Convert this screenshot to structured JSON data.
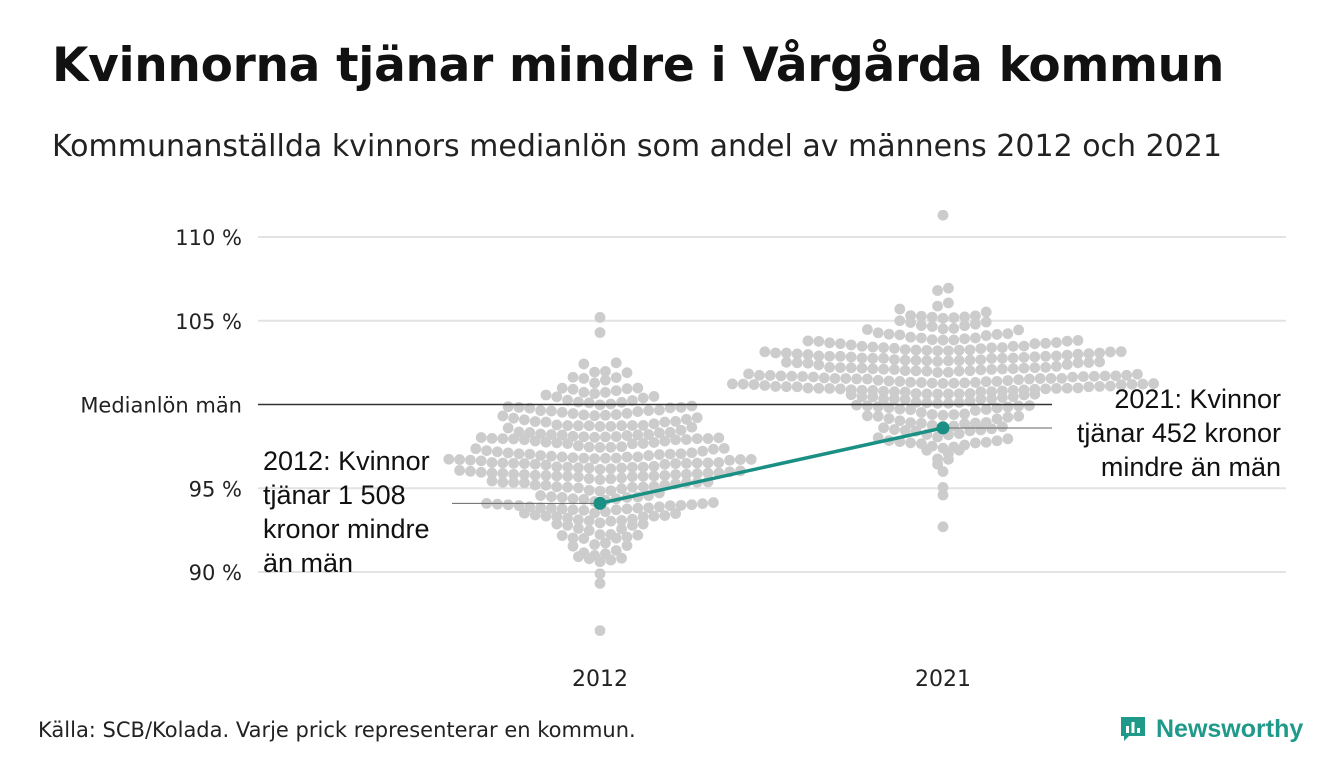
{
  "header": {
    "title": "Kvinnorna tjänar mindre i Vårgårda kommun",
    "subtitle": "Kommunanställda kvinnors medianlön som andel av männens 2012 och 2021"
  },
  "footer": {
    "source": "Källa: SCB/Kolada. Varje prick representerar en kommun.",
    "brand": "Newsworthy"
  },
  "colors": {
    "dots": "#cccccc",
    "highlight": "#1a9084",
    "gridline": "#e3e3e3",
    "reference_line": "#333333",
    "brand": "#1f9a8a"
  },
  "chart_data": {
    "type": "scatter",
    "subtype": "beeswarm",
    "categories": [
      "2012",
      "2021"
    ],
    "y_ticks": [
      {
        "value": 90,
        "label": "90 %"
      },
      {
        "value": 95,
        "label": "95 %"
      },
      {
        "value": 100,
        "label": "Medianlön män"
      },
      {
        "value": 105,
        "label": "105 %"
      },
      {
        "value": 110,
        "label": "110 %"
      }
    ],
    "ylim": [
      86.5,
      111.5
    ],
    "reference_line": {
      "value": 100
    },
    "distributions": [
      {
        "category": "2012",
        "center": 96.5,
        "spread": 2.7,
        "min": 86.5,
        "max": 105.2,
        "count": 290
      },
      {
        "category": "2021",
        "center": 101.2,
        "spread": 2.3,
        "min": 92.7,
        "max": 111.3,
        "count": 290
      }
    ],
    "highlight": {
      "name": "Vårgårda",
      "values": [
        {
          "x": "2012",
          "y": 94.1
        },
        {
          "x": "2021",
          "y": 98.6
        }
      ]
    },
    "annotations": [
      {
        "category": "2012",
        "lines": [
          "2012: Kvinnor",
          "tjänar 1 508",
          "kronor mindre",
          "än män"
        ]
      },
      {
        "category": "2021",
        "lines": [
          "2021: Kvinnor",
          "tjänar 452 kronor",
          "mindre än män"
        ]
      }
    ]
  }
}
